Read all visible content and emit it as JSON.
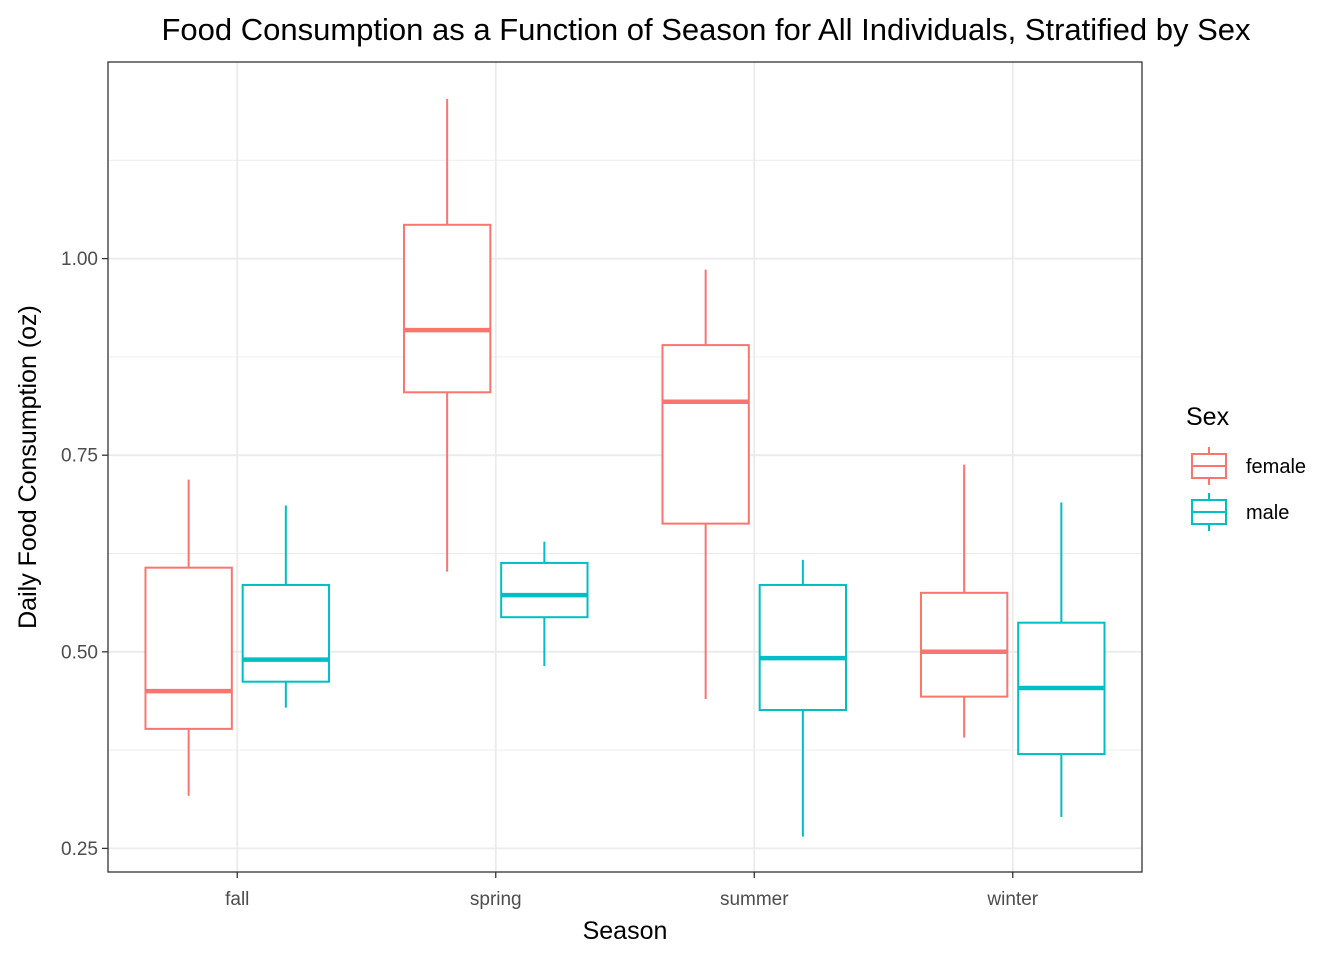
{
  "chart_data": {
    "type": "boxplot",
    "title": "Food Consumption as a Function of Season for All Individuals, Stratified by Sex",
    "xlabel": "Season",
    "ylabel": "Daily Food Consumption (oz)",
    "categories": [
      "fall",
      "spring",
      "summer",
      "winter"
    ],
    "ylim": [
      0.22,
      1.25
    ],
    "yticks": [
      0.25,
      0.5,
      0.75,
      1.0
    ],
    "ytick_labels": [
      "0.25",
      "0.50",
      "0.75",
      "1.00"
    ],
    "grid": true,
    "legend": {
      "title": "Sex",
      "position": "right"
    },
    "series": [
      {
        "name": "female",
        "color": "#F8766D",
        "boxes": [
          {
            "category": "fall",
            "min": 0.317,
            "q1": 0.402,
            "median": 0.45,
            "q3": 0.607,
            "max": 0.719
          },
          {
            "category": "spring",
            "min": 0.602,
            "q1": 0.83,
            "median": 0.909,
            "q3": 1.043,
            "max": 1.203
          },
          {
            "category": "summer",
            "min": 0.44,
            "q1": 0.663,
            "median": 0.818,
            "q3": 0.89,
            "max": 0.986
          },
          {
            "category": "winter",
            "min": 0.391,
            "q1": 0.443,
            "median": 0.5,
            "q3": 0.575,
            "max": 0.738
          }
        ]
      },
      {
        "name": "male",
        "color": "#00BFC4",
        "boxes": [
          {
            "category": "fall",
            "min": 0.429,
            "q1": 0.462,
            "median": 0.49,
            "q3": 0.585,
            "max": 0.686
          },
          {
            "category": "spring",
            "min": 0.482,
            "q1": 0.544,
            "median": 0.572,
            "q3": 0.613,
            "max": 0.64
          },
          {
            "category": "summer",
            "min": 0.265,
            "q1": 0.426,
            "median": 0.492,
            "q3": 0.585,
            "max": 0.617
          },
          {
            "category": "winter",
            "min": 0.29,
            "q1": 0.37,
            "median": 0.454,
            "q3": 0.537,
            "max": 0.69
          }
        ]
      }
    ]
  }
}
